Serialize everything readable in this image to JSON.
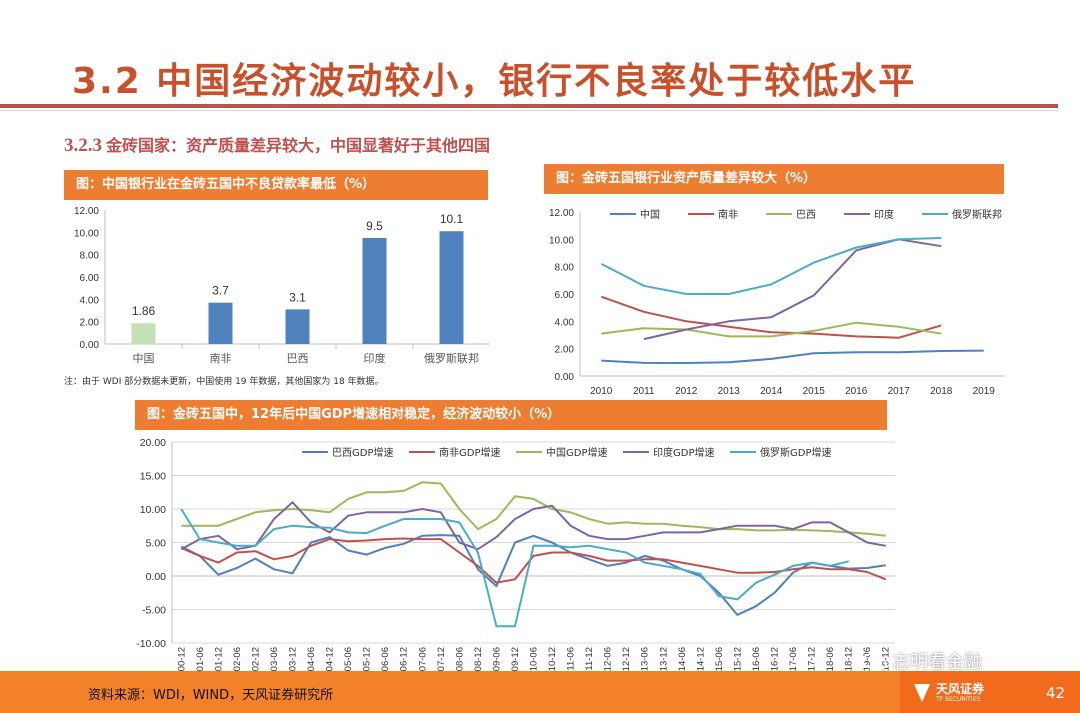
{
  "page": {
    "title": "3.2 中国经济波动较小，银行不良率处于较低水平",
    "subtitle_num": "3.2.3",
    "subtitle_text": "金砖国家：资产质量差异较大，中国显著好于其他四国",
    "note": "注：由于 WDI 部分数据未更新，中国使用 19 年数据，其他国家为 18 年数据。",
    "source": "资料来源：WDI，WIND，天风证券研究所",
    "page_number": "42",
    "watermark": "志明看金融",
    "logo_text": "天风证券",
    "logo_sub": "TF SECURITIES",
    "colors": {
      "accent": "#ed7d31",
      "title": "#c8502a",
      "bar": "#4f81bd",
      "bar_china": "#c4e0b4"
    }
  },
  "chart_data": [
    {
      "type": "bar",
      "title": "图：中国银行业在金砖五国中不良贷款率最低（%）",
      "categories": [
        "中国",
        "南非",
        "巴西",
        "印度",
        "俄罗斯联邦"
      ],
      "values": [
        1.86,
        3.7,
        3.1,
        9.5,
        10.1
      ],
      "value_labels": [
        "1.86",
        "3.7",
        "3.1",
        "9.5",
        "10.1"
      ],
      "ylim": [
        0,
        12
      ],
      "yticks": [
        "0.00",
        "2.00",
        "4.00",
        "6.00",
        "8.00",
        "10.00",
        "12.00"
      ]
    },
    {
      "type": "line",
      "title": "图：金砖五国银行业资产质量差异较大（%）",
      "x": [
        "2010",
        "2011",
        "2012",
        "2013",
        "2014",
        "2015",
        "2016",
        "2017",
        "2018",
        "2019"
      ],
      "ylim": [
        0,
        12
      ],
      "yticks": [
        "0.00",
        "2.00",
        "4.00",
        "6.00",
        "8.00",
        "10.00",
        "12.00"
      ],
      "series": [
        {
          "name": "中国",
          "color": "#4f81bd",
          "values": [
            1.13,
            0.96,
            0.95,
            1.0,
            1.25,
            1.67,
            1.74,
            1.74,
            1.83,
            1.86
          ]
        },
        {
          "name": "南非",
          "color": "#c0504d",
          "values": [
            5.8,
            4.7,
            4.0,
            3.6,
            3.2,
            3.1,
            2.9,
            2.8,
            3.7,
            null
          ]
        },
        {
          "name": "巴西",
          "color": "#9bbb59",
          "values": [
            3.1,
            3.5,
            3.4,
            2.9,
            2.9,
            3.3,
            3.9,
            3.6,
            3.1,
            null
          ]
        },
        {
          "name": "印度",
          "color": "#8064a2",
          "values": [
            null,
            2.7,
            3.4,
            4.0,
            4.3,
            5.9,
            9.2,
            10.0,
            9.5,
            null
          ]
        },
        {
          "name": "俄罗斯联邦",
          "color": "#4bacc6",
          "values": [
            8.2,
            6.6,
            6.0,
            6.0,
            6.7,
            8.3,
            9.4,
            10.0,
            10.1,
            null
          ]
        }
      ]
    },
    {
      "type": "line",
      "title": "图：金砖五国中，12年后中国GDP增速相对稳定，经济波动较小（%）",
      "x": [
        "2000-12",
        "2001-06",
        "2001-12",
        "2002-06",
        "2002-12",
        "2003-06",
        "2003-12",
        "2004-06",
        "2004-12",
        "2005-06",
        "2005-12",
        "2006-06",
        "2006-12",
        "2007-06",
        "2007-12",
        "2008-06",
        "2008-12",
        "2009-06",
        "2009-12",
        "2010-06",
        "2010-12",
        "2011-06",
        "2011-12",
        "2012-06",
        "2012-12",
        "2013-06",
        "2013-12",
        "2014-06",
        "2014-12",
        "2015-06",
        "2015-12",
        "2016-06",
        "2016-12",
        "2017-06",
        "2017-12",
        "2018-06",
        "2018-12",
        "2019-06",
        "2019-12"
      ],
      "ylim": [
        -10,
        20
      ],
      "yticks": [
        "-10.00",
        "-5.00",
        "0.00",
        "5.00",
        "10.00",
        "15.00",
        "20.00"
      ],
      "series": [
        {
          "name": "巴西GDP增速",
          "color": "#4f81bd",
          "values": [
            4.4,
            3.0,
            0.2,
            1.2,
            2.6,
            1.0,
            0.4,
            5.0,
            5.8,
            3.8,
            3.2,
            4.2,
            4.8,
            6.0,
            6.1,
            6.0,
            1.0,
            -1.5,
            5.0,
            6.0,
            5.0,
            3.5,
            2.5,
            1.5,
            2.0,
            3.0,
            2.3,
            1.0,
            0.0,
            -2.5,
            -5.8,
            -4.5,
            -2.5,
            0.5,
            2.0,
            1.5,
            1.1,
            1.2,
            1.6
          ]
        },
        {
          "name": "南非GDP增速",
          "color": "#c0504d",
          "values": [
            4.2,
            3.0,
            2.0,
            3.5,
            3.7,
            2.5,
            3.0,
            4.5,
            5.5,
            5.2,
            5.3,
            5.5,
            5.6,
            5.5,
            5.5,
            3.5,
            1.5,
            -1.0,
            -0.5,
            3.0,
            3.5,
            3.5,
            3.0,
            2.3,
            2.3,
            2.5,
            2.5,
            2.0,
            1.5,
            1.0,
            0.5,
            0.5,
            0.6,
            1.0,
            1.3,
            1.0,
            1.0,
            0.6,
            -0.5
          ]
        },
        {
          "name": "中国GDP增速",
          "color": "#9bbb59",
          "values": [
            7.5,
            7.5,
            7.5,
            8.5,
            9.5,
            9.8,
            10.0,
            9.8,
            9.5,
            11.5,
            12.5,
            12.5,
            12.7,
            14.0,
            13.8,
            10.0,
            7.0,
            8.5,
            11.9,
            11.5,
            10.0,
            9.5,
            8.5,
            7.8,
            8.0,
            7.8,
            7.8,
            7.5,
            7.3,
            7.0,
            7.0,
            6.8,
            6.8,
            6.9,
            6.8,
            6.7,
            6.5,
            6.3,
            6.0
          ]
        },
        {
          "name": "印度GDP增速",
          "color": "#8064a2",
          "values": [
            4.0,
            5.5,
            6.0,
            4.0,
            4.5,
            8.5,
            11.0,
            8.0,
            6.5,
            9.0,
            9.5,
            9.5,
            9.5,
            10.0,
            9.5,
            5.0,
            4.0,
            5.8,
            8.5,
            10.0,
            10.5,
            7.5,
            6.0,
            5.5,
            5.5,
            6.0,
            6.5,
            6.5,
            6.5,
            7.0,
            7.5,
            7.5,
            7.5,
            7.0,
            8.0,
            8.0,
            6.5,
            5.0,
            4.5
          ]
        },
        {
          "name": "俄罗斯GDP增速",
          "color": "#4bacc6",
          "values": [
            10.0,
            5.5,
            5.0,
            4.5,
            4.5,
            7.0,
            7.5,
            7.3,
            7.2,
            6.5,
            6.4,
            7.5,
            8.5,
            8.5,
            8.5,
            8.0,
            3.5,
            -7.5,
            -7.5,
            4.5,
            4.5,
            4.3,
            4.5,
            4.0,
            3.5,
            2.0,
            1.5,
            1.0,
            0.3,
            -3.0,
            -3.5,
            -1.0,
            0.2,
            1.5,
            2.0,
            1.5,
            2.2,
            null,
            null
          ]
        }
      ]
    }
  ]
}
